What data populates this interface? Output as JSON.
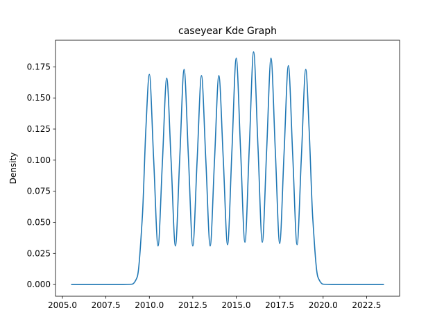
{
  "chart_data": {
    "type": "line",
    "kind": "kde",
    "title": "caseyear Kde Graph",
    "xlabel": "",
    "ylabel": "Density",
    "xlim": [
      2004.6,
      2024.4
    ],
    "ylim": [
      -0.0094,
      0.1964
    ],
    "x_ticks": [
      2005.0,
      2007.5,
      2010.0,
      2012.5,
      2015.0,
      2017.5,
      2020.0,
      2022.5
    ],
    "x_tick_labels": [
      "2005.0",
      "2007.5",
      "2010.0",
      "2012.5",
      "2015.0",
      "2017.5",
      "2020.0",
      "2022.5"
    ],
    "y_ticks": [
      0.0,
      0.025,
      0.05,
      0.075,
      0.1,
      0.125,
      0.15,
      0.175
    ],
    "y_tick_labels": [
      "0.000",
      "0.025",
      "0.050",
      "0.075",
      "0.100",
      "0.125",
      "0.150",
      "0.175"
    ],
    "grid": false,
    "line_color": "#1f77b4",
    "series": [
      {
        "x": [
          2005.5,
          2008.5,
          2009.0,
          2009.3,
          2009.6,
          2009.8,
          2010.0,
          2010.25,
          2010.5,
          2010.75,
          2011.0,
          2011.25,
          2011.5,
          2011.75,
          2012.0,
          2012.25,
          2012.5,
          2012.75,
          2013.0,
          2013.25,
          2013.5,
          2013.75,
          2014.0,
          2014.25,
          2014.5,
          2014.75,
          2015.0,
          2015.25,
          2015.5,
          2015.75,
          2016.0,
          2016.25,
          2016.5,
          2016.75,
          2017.0,
          2017.25,
          2017.5,
          2017.75,
          2018.0,
          2018.25,
          2018.5,
          2018.75,
          2019.0,
          2019.2,
          2019.4,
          2019.7,
          2020.0,
          2020.5,
          2023.5
        ],
        "y": [
          0.0,
          0.0,
          0.0003,
          0.006,
          0.055,
          0.125,
          0.169,
          0.1,
          0.031,
          0.098,
          0.166,
          0.1,
          0.031,
          0.102,
          0.173,
          0.102,
          0.031,
          0.1,
          0.168,
          0.1,
          0.031,
          0.1,
          0.168,
          0.102,
          0.032,
          0.107,
          0.182,
          0.108,
          0.034,
          0.11,
          0.187,
          0.111,
          0.034,
          0.108,
          0.182,
          0.107,
          0.033,
          0.105,
          0.176,
          0.104,
          0.032,
          0.103,
          0.173,
          0.123,
          0.054,
          0.006,
          0.0003,
          0.0,
          0.0
        ]
      }
    ]
  }
}
